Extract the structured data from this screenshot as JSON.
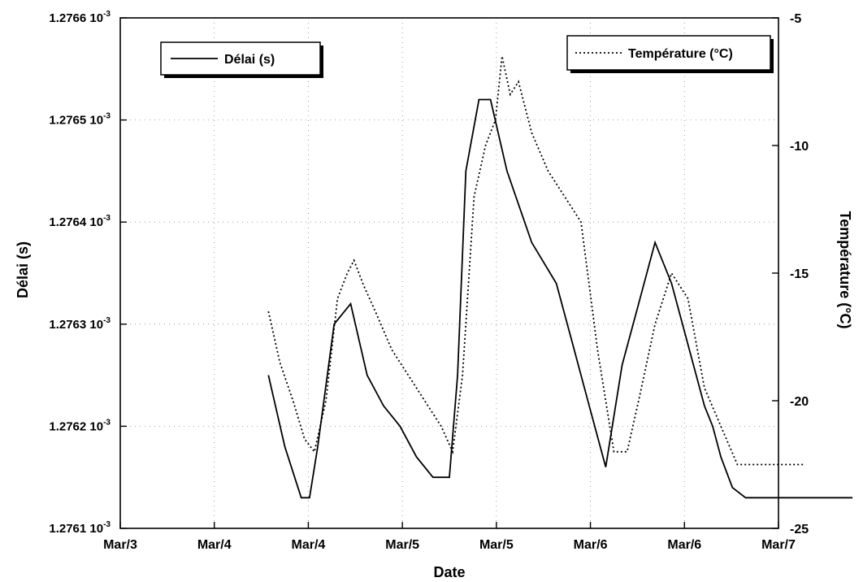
{
  "chart_data": {
    "type": "line",
    "title": "",
    "xlabel": "Date",
    "ylabel_left": "Délai (s)",
    "ylabel_right": "Température (°C)",
    "x_tick_labels": [
      "Mar/3",
      "Mar/4",
      "Mar/4",
      "Mar/5",
      "Mar/5",
      "Mar/6",
      "Mar/6",
      "Mar/7"
    ],
    "y_left_ticks": [
      {
        "value": 0.0012761,
        "mantissa": "1.2761",
        "suffix": "10",
        "exp": "-3"
      },
      {
        "value": 0.0012762,
        "mantissa": "1.2762",
        "suffix": "10",
        "exp": "-3"
      },
      {
        "value": 0.0012763,
        "mantissa": "1.2763",
        "suffix": "10",
        "exp": "-3"
      },
      {
        "value": 0.0012764,
        "mantissa": "1.2764",
        "suffix": "10",
        "exp": "-3"
      },
      {
        "value": 0.0012765,
        "mantissa": "1.2765",
        "suffix": "10",
        "exp": "-3"
      },
      {
        "value": 0.0012766,
        "mantissa": "1.2766",
        "suffix": "10",
        "exp": "-3"
      }
    ],
    "y_right_ticks": [
      {
        "value": -25,
        "label": "-25"
      },
      {
        "value": -20,
        "label": "-20"
      },
      {
        "value": -15,
        "label": "-15"
      },
      {
        "value": -10,
        "label": "-10"
      },
      {
        "value": -5,
        "label": "-5"
      }
    ],
    "x_range_days": [
      3,
      7
    ],
    "ylim_left": [
      0.0012761,
      0.0012766
    ],
    "ylim_right": [
      -25,
      -5
    ],
    "grid": "dotted",
    "series": [
      {
        "name": "Délai (s)",
        "axis": "left",
        "style": "solid",
        "x": [
          3.9,
          4.0,
          4.1,
          4.15,
          4.2,
          4.3,
          4.4,
          4.5,
          4.6,
          4.7,
          4.8,
          4.9,
          5.0,
          5.05,
          5.1,
          5.18,
          5.25,
          5.35,
          5.5,
          5.65,
          5.75,
          5.85,
          5.95,
          6.05,
          6.15,
          6.25,
          6.35,
          6.45,
          6.55,
          6.6,
          6.65,
          6.72,
          6.8,
          6.9,
          6.98,
          7.05,
          7.1,
          7.2,
          7.3,
          7.4,
          7.45
        ],
        "y": [
          0.00127625,
          0.00127618,
          0.00127613,
          0.00127613,
          0.00127618,
          0.0012763,
          0.00127632,
          0.00127625,
          0.00127622,
          0.0012762,
          0.00127617,
          0.00127615,
          0.00127615,
          0.00127625,
          0.00127645,
          0.00127652,
          0.00127652,
          0.00127645,
          0.00127638,
          0.00127634,
          0.00127628,
          0.00127622,
          0.00127616,
          0.00127626,
          0.00127632,
          0.00127638,
          0.00127634,
          0.00127628,
          0.00127622,
          0.0012762,
          0.00127617,
          0.00127614,
          0.00127613,
          0.00127613,
          0.00127613,
          0.00127613,
          0.00127613,
          0.00127613,
          0.00127613,
          0.00127613,
          0.00127613
        ]
      },
      {
        "name": "Température (°C)",
        "axis": "right",
        "style": "dotted",
        "x": [
          3.9,
          3.97,
          4.05,
          4.12,
          4.18,
          4.25,
          4.32,
          4.38,
          4.42,
          4.48,
          4.55,
          4.65,
          4.75,
          4.85,
          4.95,
          5.02,
          5.08,
          5.15,
          5.22,
          5.28,
          5.32,
          5.37,
          5.42,
          5.5,
          5.6,
          5.7,
          5.8,
          5.9,
          6.0,
          6.08,
          6.15,
          6.25,
          6.35,
          6.45,
          6.55,
          6.65,
          6.75,
          6.85,
          6.95,
          7.05,
          7.15
        ],
        "y": [
          -16.5,
          -18.5,
          -20,
          -21.5,
          -22,
          -20,
          -16,
          -15,
          -14.5,
          -15.5,
          -16.5,
          -18,
          -19,
          -20,
          -21,
          -22,
          -19,
          -12,
          -10,
          -9,
          -6.5,
          -8,
          -7.5,
          -9.5,
          -11,
          -12,
          -13,
          -18,
          -22,
          -22,
          -20,
          -17,
          -15,
          -16,
          -19.5,
          -21,
          -22.5,
          -22.5,
          -22.5,
          -22.5,
          -22.5
        ]
      }
    ],
    "legend": [
      {
        "label": "Délai (s)",
        "style": "solid",
        "position": "top-left"
      },
      {
        "label": "Température (°C)",
        "style": "dotted",
        "position": "top-right"
      }
    ]
  }
}
